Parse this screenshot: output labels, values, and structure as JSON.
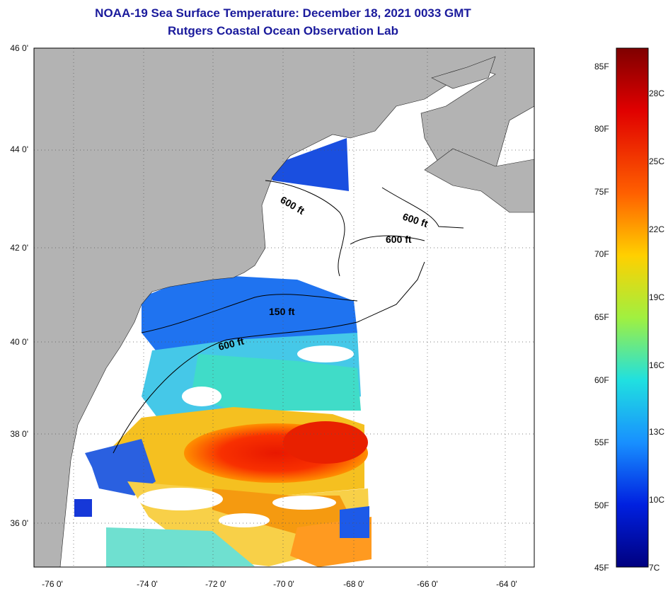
{
  "title": {
    "line1": "NOAA-19 Sea Surface Temperature:  December 18, 2021 0033 GMT",
    "line2": "Rutgers Coastal Ocean Observation Lab"
  },
  "axes": {
    "lat_labels": [
      "46 0'",
      "44 0'",
      "42 0'",
      "40 0'",
      "38 0'",
      "36 0'"
    ],
    "lon_labels": [
      "-76 0'",
      "-74 0'",
      "-72 0'",
      "-70 0'",
      "-68 0'",
      "-66 0'",
      "-64 0'"
    ]
  },
  "contours": {
    "label_150": "150 ft",
    "label_600_a": "600 ft",
    "label_600_b": "600 ft",
    "label_600_c": "600 ft",
    "label_600_d": "600 ft"
  },
  "colorbar": {
    "fahrenheit": [
      "85F",
      "80F",
      "75F",
      "70F",
      "65F",
      "60F",
      "55F",
      "50F",
      "45F"
    ],
    "celsius": [
      "28C",
      "25C",
      "22C",
      "19C",
      "16C",
      "13C",
      "10C",
      "7C"
    ]
  },
  "colors": {
    "land": "#b3b3b3",
    "no_data": "#ffffff",
    "title": "#1a1a9c",
    "scale_low": "#00007f",
    "scale_high": "#7f0000"
  }
}
